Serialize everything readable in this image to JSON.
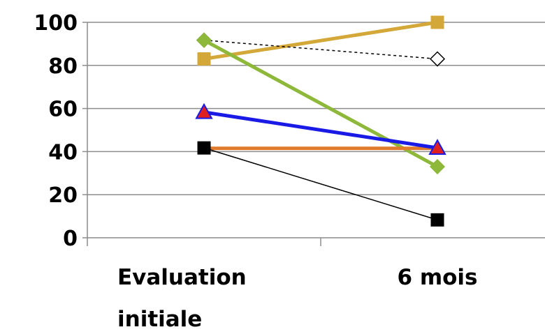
{
  "chart_data": {
    "type": "line",
    "title": "",
    "xlabel": "",
    "ylabel": "",
    "categories": [
      [
        "Evaluation",
        "initiale"
      ],
      [
        "6 mois"
      ]
    ],
    "ylim": [
      0,
      100
    ],
    "yticks": [
      0,
      20,
      40,
      60,
      80,
      100
    ],
    "grid": true,
    "legend": "none",
    "series": [
      {
        "values": [
          83,
          100
        ],
        "color": "#D4A838",
        "marker": "square",
        "marker_fill": "#D4A838",
        "marker_stroke": "#D4A838",
        "line_style": "solid",
        "line_weight": "thick"
      },
      {
        "values": [
          91.7,
          83
        ],
        "color": "#000000",
        "marker": "diamond",
        "marker_fill": "#ffffff",
        "marker_stroke": "#000000",
        "line_style": "dashed",
        "line_weight": "thin"
      },
      {
        "values": [
          91.7,
          33
        ],
        "color": "#8DB83A",
        "marker": "diamond",
        "marker_fill": "#8DB83A",
        "marker_stroke": "#8DB83A",
        "line_style": "solid",
        "line_weight": "thick"
      },
      {
        "values": [
          41.5,
          41.5
        ],
        "color": "#E07B2E",
        "marker": "none",
        "line_style": "solid",
        "line_weight": "thick"
      },
      {
        "values": [
          58.3,
          41.7
        ],
        "color": "#1A1AE6",
        "marker": "triangle",
        "marker_fill": "#E02020",
        "marker_stroke": "#1A1AE6",
        "line_style": "solid",
        "line_weight": "thick"
      },
      {
        "values": [
          41.7,
          8.3
        ],
        "color": "#000000",
        "marker": "square",
        "marker_fill": "#000000",
        "marker_stroke": "#000000",
        "line_style": "solid",
        "line_weight": "thin"
      }
    ]
  }
}
